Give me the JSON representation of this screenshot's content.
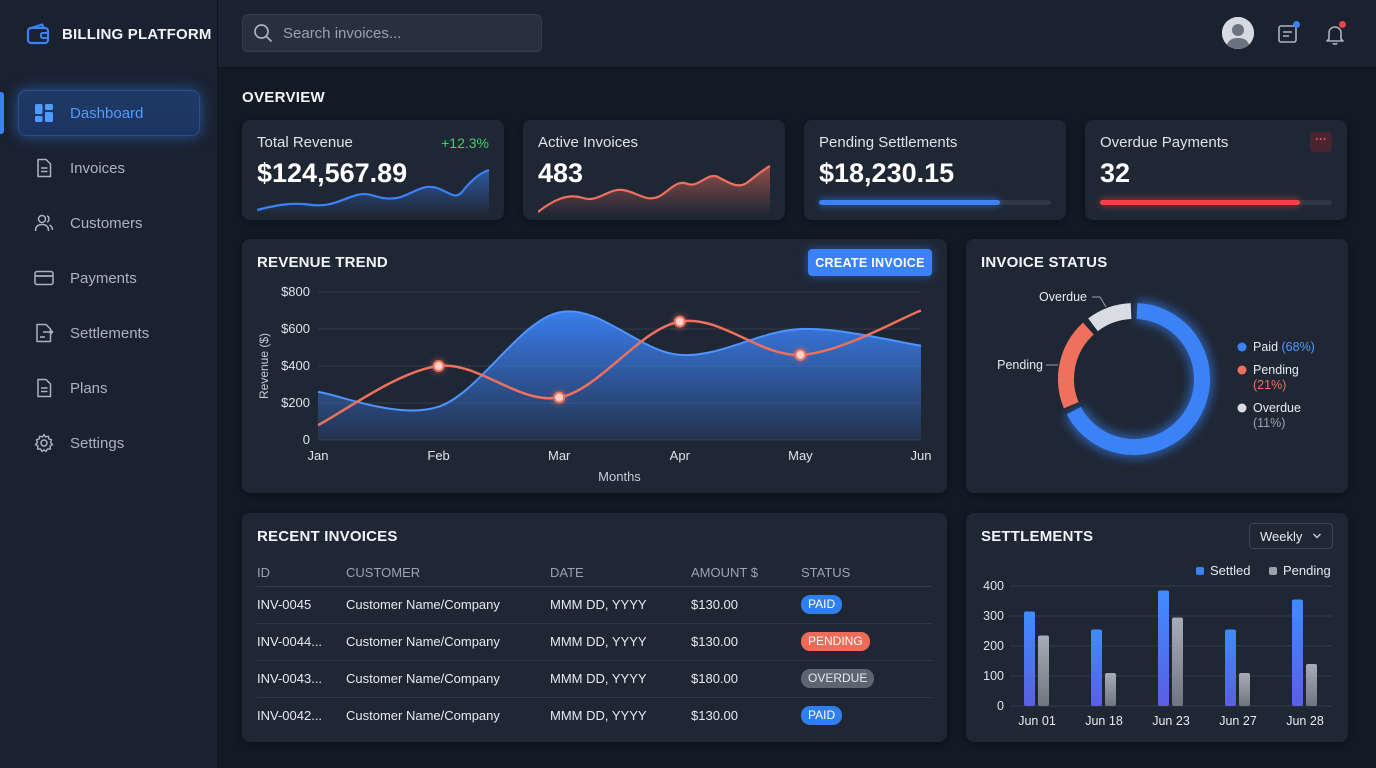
{
  "app": {
    "title": "BILLING PLATFORM"
  },
  "sidebar": {
    "items": [
      {
        "label": "Dashboard",
        "icon": "dashboard-icon",
        "active": true
      },
      {
        "label": "Invoices",
        "icon": "document-icon",
        "active": false
      },
      {
        "label": "Customers",
        "icon": "users-icon",
        "active": false
      },
      {
        "label": "Payments",
        "icon": "card-icon",
        "active": false
      },
      {
        "label": "Settlements",
        "icon": "settlement-icon",
        "active": false
      },
      {
        "label": "Plans",
        "icon": "document-icon",
        "active": false
      },
      {
        "label": "Settings",
        "icon": "gear-icon",
        "active": false
      }
    ]
  },
  "topbar": {
    "search_placeholder": "Search invoices..."
  },
  "overview": {
    "title": "OVERVIEW",
    "kpis": [
      {
        "label": "Total Revenue",
        "value": "$124,567.89",
        "change": "+12.3%"
      },
      {
        "label": "Active Invoices",
        "value": "483"
      },
      {
        "label": "Pending Settlements",
        "value": "$18,230.15",
        "progress": 0.78
      },
      {
        "label": "Overdue Payments",
        "value": "32",
        "progress": 0.86,
        "more": "···"
      }
    ]
  },
  "revenue_trend": {
    "title": "REVENUE TREND",
    "button": "CREATE INVOICE"
  },
  "invoice_status": {
    "title": "INVOICE STATUS"
  },
  "recent_invoices": {
    "title": "RECENT INVOICES",
    "columns": [
      "ID",
      "CUSTOMER",
      "DATE",
      "AMOUNT $",
      "STATUS"
    ],
    "rows": [
      {
        "id": "INV-0045",
        "customer": "Customer Name/Company",
        "date": "MMM DD, YYYY",
        "amount": "$130.00",
        "status": "PAID"
      },
      {
        "id": "INV-0044...",
        "customer": "Customer Name/Company",
        "date": "MMM DD, YYYY",
        "amount": "$130.00",
        "status": "PENDING"
      },
      {
        "id": "INV-0043...",
        "customer": "Customer Name/Company",
        "date": "MMM DD, YYYY",
        "amount": "$180.00",
        "status": "OVERDUE"
      },
      {
        "id": "INV-0042...",
        "customer": "Customer Name/Company",
        "date": "MMM DD, YYYY",
        "amount": "$130.00",
        "status": "PAID"
      }
    ]
  },
  "settlements": {
    "title": "SETTLEMENTS",
    "period": "Weekly"
  },
  "colors": {
    "accent": "#3b82f6",
    "pending": "#f0705e",
    "overdue": "#d9dde3",
    "positive": "#3ecf6e",
    "danger": "#ef4444"
  },
  "chart_data": [
    {
      "type": "line",
      "title": "REVENUE TREND",
      "xlabel": "Months",
      "ylabel": "Revenue ($)",
      "categories": [
        "Jan",
        "Feb",
        "Mar",
        "Apr",
        "May",
        "Jun"
      ],
      "ylim": [
        0,
        800
      ],
      "yticks": [
        "0",
        "$200",
        "$400",
        "$600",
        "$800"
      ],
      "grid": true,
      "series": [
        {
          "style": "area",
          "color": "#3b82f6",
          "values": [
            260,
            180,
            690,
            460,
            600,
            510
          ]
        },
        {
          "style": "line-markers",
          "color": "#f0705e",
          "values": [
            80,
            400,
            230,
            640,
            460,
            700
          ]
        }
      ]
    },
    {
      "type": "pie",
      "title": "INVOICE STATUS",
      "donut": true,
      "slices": [
        {
          "label": "Paid",
          "value": 68,
          "pct_label": "(68%)",
          "color": "#3b82f6"
        },
        {
          "label": "Pending",
          "value": 21,
          "pct_label": "(21%)",
          "color": "#f0705e"
        },
        {
          "label": "Overdue",
          "value": 11,
          "pct_label": "(11%)",
          "color": "#d9dde3"
        }
      ],
      "legend_position": "right"
    },
    {
      "type": "bar",
      "title": "SETTLEMENTS",
      "categories": [
        "Jun 01",
        "Jun 18",
        "Jun 23",
        "Jun 27",
        "Jun 28"
      ],
      "ylim": [
        0,
        400
      ],
      "yticks": [
        "0",
        "100",
        "200",
        "300",
        "400"
      ],
      "grid": true,
      "legend_position": "top-right",
      "series": [
        {
          "name": "Settled",
          "color": "#3b82f6",
          "values": [
            315,
            255,
            385,
            255,
            355
          ]
        },
        {
          "name": "Pending",
          "color": "#9aa2ad",
          "values": [
            235,
            110,
            295,
            110,
            140
          ]
        }
      ]
    }
  ]
}
